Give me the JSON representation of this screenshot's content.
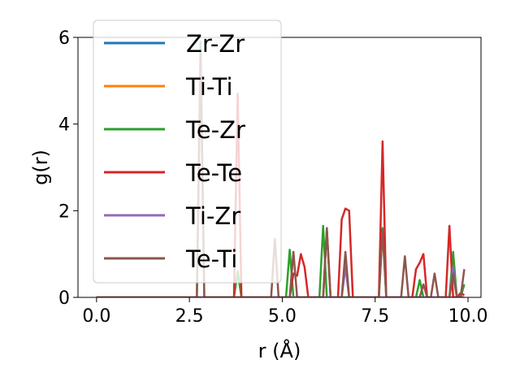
{
  "chart_data": {
    "type": "line",
    "xlabel": "r (Å)",
    "ylabel": "g(r)",
    "xlim": [
      -0.5,
      10.35
    ],
    "ylim": [
      0,
      6
    ],
    "xticks": [
      "0.0",
      "2.5",
      "5.0",
      "7.5",
      "10.0"
    ],
    "yticks": [
      "0",
      "2",
      "4",
      "6"
    ],
    "grid": false,
    "legend_position": "upper-left",
    "x": [
      0.0,
      0.1,
      0.2,
      0.3,
      0.4,
      0.5,
      0.6,
      0.7,
      0.8,
      0.9,
      1.0,
      1.1,
      1.2,
      1.3,
      1.4,
      1.5,
      1.6,
      1.7,
      1.8,
      1.9,
      2.0,
      2.1,
      2.2,
      2.3,
      2.4,
      2.5,
      2.6,
      2.7,
      2.8,
      2.9,
      3.0,
      3.1,
      3.2,
      3.3,
      3.4,
      3.5,
      3.6,
      3.7,
      3.8,
      3.9,
      4.0,
      4.1,
      4.2,
      4.3,
      4.4,
      4.5,
      4.6,
      4.7,
      4.8,
      4.9,
      5.0,
      5.1,
      5.2,
      5.3,
      5.4,
      5.5,
      5.6,
      5.7,
      5.8,
      5.9,
      6.0,
      6.1,
      6.2,
      6.3,
      6.4,
      6.5,
      6.6,
      6.7,
      6.8,
      6.9,
      7.0,
      7.1,
      7.2,
      7.3,
      7.4,
      7.5,
      7.6,
      7.7,
      7.8,
      7.9,
      8.0,
      8.1,
      8.2,
      8.3,
      8.4,
      8.5,
      8.6,
      8.7,
      8.8,
      8.9,
      9.0,
      9.1,
      9.2,
      9.3,
      9.4,
      9.5,
      9.6,
      9.7,
      9.8,
      9.9
    ],
    "series": [
      {
        "name": "Zr-Zr",
        "color": "#1f77b4",
        "values": [
          0,
          0,
          0,
          0,
          0,
          0,
          0,
          0,
          0,
          0,
          0,
          0,
          0,
          0,
          0,
          0,
          0,
          0,
          0,
          0,
          0,
          0,
          0,
          0,
          0,
          0,
          0,
          0,
          0,
          0,
          0,
          0,
          0,
          0,
          0,
          0,
          0,
          0,
          0,
          0,
          0,
          0,
          0,
          0,
          0,
          0,
          0,
          0,
          0,
          0,
          0,
          0,
          0,
          0,
          0,
          0,
          0,
          0,
          0,
          0,
          0,
          0,
          0,
          0,
          0,
          0,
          0,
          0,
          0,
          0,
          0,
          0,
          0,
          0,
          0,
          0,
          0,
          0,
          0,
          0,
          0,
          0,
          0,
          0,
          0,
          0,
          0,
          0,
          0,
          0,
          0,
          0,
          0,
          0,
          0,
          0,
          0,
          0,
          0,
          0
        ]
      },
      {
        "name": "Ti-Ti",
        "color": "#ff7f0e",
        "values": [
          0,
          0,
          0,
          0,
          0,
          0,
          0,
          0,
          0,
          0,
          0,
          0,
          0,
          0,
          0,
          0,
          0,
          0,
          0,
          0,
          0,
          0,
          0,
          0,
          0,
          0,
          0,
          0,
          0,
          0,
          0,
          0,
          0,
          0,
          0,
          0,
          0,
          0,
          0,
          0,
          0,
          0,
          0,
          0,
          0,
          0,
          0,
          0,
          0,
          0,
          0,
          0,
          0,
          0,
          0,
          0,
          0,
          0,
          0,
          0,
          0,
          0,
          0,
          0,
          0,
          0,
          0,
          0,
          0,
          0,
          0,
          0,
          0,
          0,
          0,
          0,
          0,
          0,
          0,
          0,
          0,
          0,
          0,
          0,
          0,
          0,
          0,
          0,
          0,
          0,
          0,
          0,
          0,
          0,
          0,
          0,
          0,
          0,
          0,
          0
        ]
      },
      {
        "name": "Te-Zr",
        "color": "#2ca02c",
        "values": [
          0,
          0,
          0,
          0,
          0,
          0,
          0,
          0,
          0,
          0,
          0,
          0,
          0,
          0,
          0,
          0,
          0,
          0,
          0,
          0,
          0,
          0,
          0,
          0,
          0,
          0,
          0,
          0,
          5.9,
          0,
          0,
          0,
          0,
          0,
          0,
          0,
          0,
          0,
          0.6,
          0,
          0,
          0,
          0,
          0,
          0,
          0,
          0,
          0,
          0,
          0,
          0,
          0,
          1.1,
          0,
          0,
          0,
          0,
          0,
          0,
          0,
          0,
          1.65,
          0,
          0,
          0,
          0,
          0,
          0,
          0,
          0,
          0,
          0,
          0,
          0,
          0,
          0,
          0,
          1.6,
          0,
          0,
          0,
          0,
          0,
          0,
          0,
          0,
          0,
          0.4,
          0,
          0,
          0,
          0,
          0,
          0,
          0,
          0,
          1.05,
          0,
          0,
          0.3
        ]
      },
      {
        "name": "Te-Te",
        "color": "#d62728",
        "values": [
          0,
          0,
          0,
          0,
          0,
          0,
          0,
          0,
          0,
          0,
          0,
          0,
          0,
          0,
          0,
          0,
          0,
          0,
          0,
          0,
          0,
          0,
          0,
          0,
          0,
          0,
          0,
          0,
          0,
          0,
          0,
          0,
          0,
          0,
          0,
          0,
          0,
          0,
          4.7,
          0,
          0,
          0,
          0,
          0,
          0,
          0,
          0,
          0,
          0,
          0,
          0,
          0,
          0,
          0.55,
          0.5,
          1.0,
          0.7,
          0,
          0,
          0,
          0,
          0,
          1.55,
          0,
          0,
          0,
          1.8,
          2.05,
          2.0,
          0,
          0,
          0,
          0,
          0,
          0,
          0,
          0,
          3.6,
          0,
          0,
          0,
          0,
          0,
          0,
          0,
          0,
          0.65,
          0.8,
          1.0,
          0,
          0,
          0,
          0,
          0,
          0,
          1.65,
          0,
          0,
          0.1,
          0.05
        ]
      },
      {
        "name": "Ti-Zr",
        "color": "#9467bd",
        "values": [
          0,
          0,
          0,
          0,
          0,
          0,
          0,
          0,
          0,
          0,
          0,
          0,
          0,
          0,
          0,
          0,
          0,
          0,
          0,
          0,
          0,
          0,
          0,
          0,
          0,
          0,
          0,
          0,
          0,
          0,
          0,
          0,
          0,
          0,
          0,
          0,
          0,
          0,
          0,
          0,
          0,
          0,
          0,
          0,
          0,
          0,
          0,
          0,
          0,
          0,
          0,
          0,
          0,
          0,
          0,
          0,
          0,
          0,
          0,
          0,
          0,
          0,
          0,
          0,
          0,
          0,
          0,
          0.7,
          0,
          0,
          0,
          0,
          0,
          0,
          0,
          0,
          0,
          0,
          0,
          0,
          0,
          0,
          0,
          0,
          0,
          0,
          0,
          0,
          0,
          0,
          0,
          0,
          0,
          0,
          0,
          0,
          0.7,
          0,
          0,
          0
        ]
      },
      {
        "name": "Te-Ti",
        "color": "#8c564b",
        "values": [
          0,
          0,
          0,
          0,
          0,
          0,
          0,
          0,
          0,
          0,
          0,
          0,
          0,
          0,
          0,
          0,
          0,
          0,
          0,
          0,
          0,
          0,
          0,
          0,
          0,
          0,
          0,
          0,
          5.6,
          0,
          0,
          0,
          0,
          0,
          0,
          0,
          0,
          0,
          0,
          0,
          0,
          0,
          0,
          0,
          0,
          0,
          0,
          0,
          1.35,
          0,
          0,
          0,
          0,
          1.05,
          0,
          0,
          0,
          0,
          0,
          0,
          0,
          0,
          1.6,
          0,
          0,
          0,
          0,
          1.05,
          0,
          0,
          0,
          0,
          0,
          0,
          0,
          0,
          0,
          1.55,
          0,
          0,
          0,
          0,
          0,
          0.95,
          0,
          0,
          0,
          0,
          0.3,
          0,
          0,
          0.55,
          0,
          0,
          0,
          0,
          0.55,
          0,
          0,
          0.65
        ]
      }
    ]
  }
}
